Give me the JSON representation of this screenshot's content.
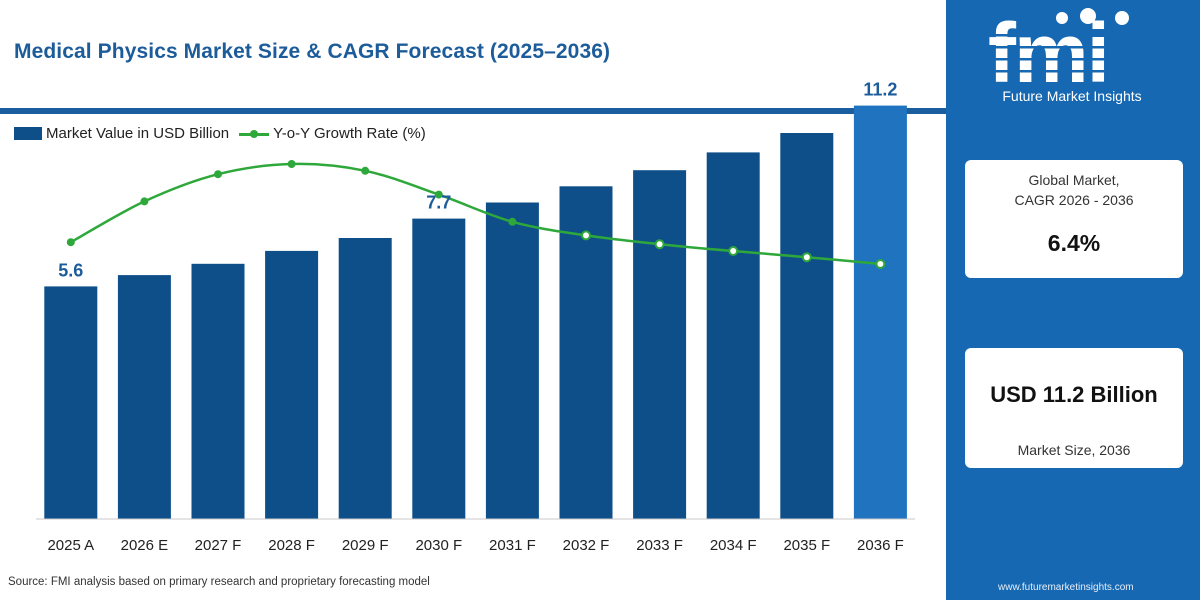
{
  "title": "Medical Physics Market Size & CAGR Forecast (2025–2036)",
  "legend": {
    "bar_label": "Market Value in USD Billion",
    "line_label": "Y-o-Y Growth Rate (%)"
  },
  "source": "Source: FMI analysis based on primary research and proprietary forecasting model",
  "brand": {
    "logo_text": "fmi",
    "name": "Future Market Insights",
    "website": "www.futuremarketinsights.com"
  },
  "cards": {
    "cagr_caption_line1": "Global Market,",
    "cagr_caption_line2": "CAGR 2026 - 2036",
    "cagr_value": "6.4%",
    "size_value": "USD 11.2 Billion",
    "size_caption": "Market Size, 2036"
  },
  "colors": {
    "bar": "#0e4f8a",
    "bar_highlight": "#1f73bf",
    "line": "#2ea83a",
    "panel": "#1668b2",
    "title": "#1d5c9a"
  },
  "chart_data": {
    "type": "bar",
    "categories": [
      "2025 A",
      "2026 E",
      "2027 F",
      "2028 F",
      "2029 F",
      "2030 F",
      "2031 F",
      "2032 F",
      "2033 F",
      "2034 F",
      "2035 F",
      "2036 F"
    ],
    "series": [
      {
        "name": "Market Value in USD Billion",
        "type": "bar",
        "values": [
          5.6,
          5.95,
          6.3,
          6.7,
          7.1,
          7.7,
          8.2,
          8.7,
          9.2,
          9.75,
          10.35,
          11.2
        ]
      },
      {
        "name": "Y-o-Y Growth Rate (%)",
        "type": "line",
        "values": [
          6.2,
          6.8,
          7.2,
          7.35,
          7.25,
          6.9,
          6.5,
          6.3,
          6.17,
          6.07,
          5.98,
          5.88
        ]
      }
    ],
    "data_labels": [
      {
        "index": 0,
        "text": "5.6"
      },
      {
        "index": 5,
        "text": "7.7"
      },
      {
        "index": 11,
        "text": "11.2"
      }
    ],
    "highlight_index": 11,
    "grid": false,
    "legend_position": "top-left"
  }
}
